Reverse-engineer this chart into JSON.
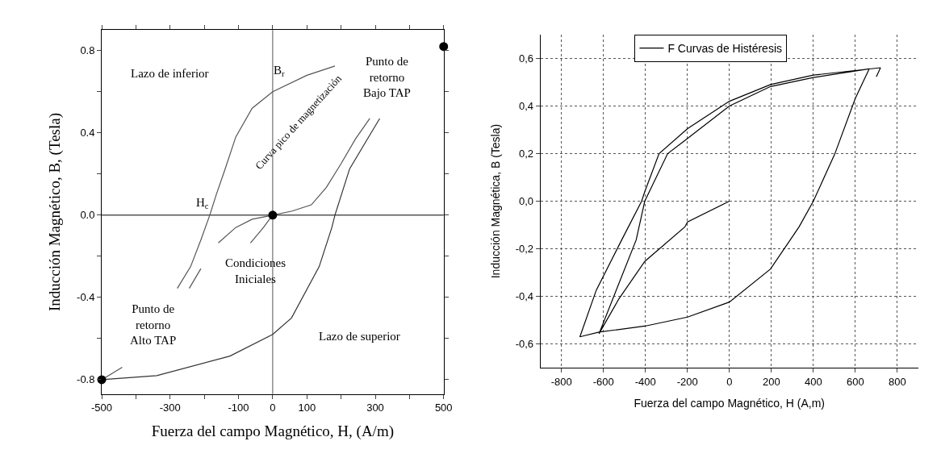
{
  "chart_data": [
    {
      "type": "line",
      "xlabel": "Fuerza del campo Magnético, H, (A/m)",
      "ylabel": "Inducción Magnético, B, (Tesla)",
      "xlim": [
        -500,
        500
      ],
      "ylim": [
        -0.87,
        0.9
      ],
      "xticks": [
        -500,
        {
          "value": -400,
          "label": null
        },
        -300,
        {
          "value": -200,
          "label": null
        },
        -100,
        0,
        100,
        {
          "value": 200,
          "label": null
        },
        300,
        {
          "value": 400,
          "label": null
        },
        500
      ],
      "yticks": [
        {
          "value": -0.8,
          "label": "-0.8"
        },
        {
          "value": -0.6,
          "label": null
        },
        {
          "value": -0.4,
          "label": "-0.4"
        },
        {
          "value": -0.2,
          "label": null
        },
        {
          "value": 0.0,
          "label": "0.0"
        },
        {
          "value": 0.2,
          "label": null
        },
        {
          "value": 0.4,
          "label": "0.4"
        },
        {
          "value": 0.6,
          "label": null
        },
        {
          "value": 0.8,
          "label": "0.8"
        }
      ],
      "grid": false,
      "legend": false,
      "marker": "none",
      "line_style": "solid",
      "ref_lines": [
        {
          "axis": "x",
          "value": 0,
          "color": "#555555"
        },
        {
          "axis": "y",
          "value": 0,
          "color": "#000000"
        }
      ],
      "series": [
        {
          "color": "#555555",
          "x": [
            182,
            100,
            0,
            -60,
            -108,
            -140,
            -165,
            -184,
            -210,
            -240,
            -279,
            null,
            -440,
            -470,
            -500
          ],
          "values": [
            0.725,
            0.68,
            0.6,
            0.52,
            0.38,
            0.22,
            0.1,
            0.0,
            -0.12,
            -0.25,
            -0.356,
            null,
            -0.74,
            -0.77,
            -0.8
          ]
        },
        {
          "color": "#333333",
          "x": [
            -500,
            -339,
            -125,
            0,
            55,
            136,
            173,
            182,
            225,
            272,
            313
          ],
          "values": [
            -0.8,
            -0.78,
            -0.685,
            -0.58,
            -0.5,
            -0.25,
            -0.06,
            0.0,
            0.225,
            0.356,
            0.47
          ]
        },
        {
          "color": "#555555",
          "x": [
            -159,
            -108,
            -60,
            0,
            57,
            113,
            157,
            200,
            242,
            284
          ],
          "values": [
            -0.135,
            -0.06,
            -0.02,
            0.0,
            0.02,
            0.05,
            0.135,
            0.25,
            0.37,
            0.47
          ]
        },
        {
          "color": "#555555",
          "x": [
            -244,
            -210,
            null,
            -65,
            -27,
            -5
          ],
          "values": [
            -0.356,
            -0.26,
            null,
            -0.135,
            -0.06,
            -0.01
          ]
        },
        {
          "type": "scatter",
          "marker": "circle",
          "color": "#000000",
          "x": [
            0,
            -500,
            500
          ],
          "values": [
            0.0,
            -0.8,
            0.82
          ]
        }
      ],
      "annotations": [
        "Lazo de inferior",
        "B$_{r}$",
        "Punto de\nretorno\nBajo TAP",
        "Curva pico de magnetización",
        "H$_{c}$",
        "Condiciones\nIniciales",
        "Punto de\nretorno\nAlto TAP",
        "Lazo de superior"
      ]
    },
    {
      "type": "line",
      "xlabel": "Fuerza del campo Magnético, H (A,m)",
      "ylabel": "Inducción Magnética, B (Tesla)",
      "xlim": [
        -900,
        900
      ],
      "ylim": [
        -0.7,
        0.7
      ],
      "xticks": [
        -800,
        -600,
        -400,
        -200,
        0,
        200,
        400,
        600,
        800
      ],
      "yticks": [
        {
          "value": -0.6,
          "label": "-0,6"
        },
        {
          "value": -0.4,
          "label": "-0,4"
        },
        {
          "value": -0.2,
          "label": "-0,2"
        },
        {
          "value": 0.0,
          "label": "0,0"
        },
        {
          "value": 0.2,
          "label": "0,2"
        },
        {
          "value": 0.4,
          "label": "0,4"
        },
        {
          "value": 0.6,
          "label": "0,6"
        }
      ],
      "grid": true,
      "legend": "top",
      "marker": "none",
      "line_style": "solid",
      "series": [
        {
          "name": "F Curvas de Histéresis",
          "color": "#000000",
          "x": [
            0,
            -199,
            -212,
            -403,
            -526,
            -621,
            -444,
            -403,
            -294,
            -212,
            0,
            196,
            400,
            666,
            600,
            502,
            400,
            332,
            196,
            0,
            -199,
            -403,
            -621,
            -712,
            -634,
            -513,
            -418,
            -403,
            -335,
            -199,
            0,
            196,
            400,
            720,
            700
          ],
          "values": [
            0.0,
            -0.087,
            -0.108,
            -0.253,
            -0.41,
            -0.557,
            -0.163,
            0.0,
            0.2,
            0.255,
            0.4,
            0.482,
            0.52,
            0.556,
            0.432,
            0.198,
            0.0,
            -0.108,
            -0.285,
            -0.424,
            -0.487,
            -0.525,
            -0.55,
            -0.57,
            -0.374,
            -0.163,
            0.0,
            0.04,
            0.2,
            0.305,
            0.42,
            0.49,
            0.53,
            0.561,
            0.523
          ]
        }
      ]
    }
  ]
}
